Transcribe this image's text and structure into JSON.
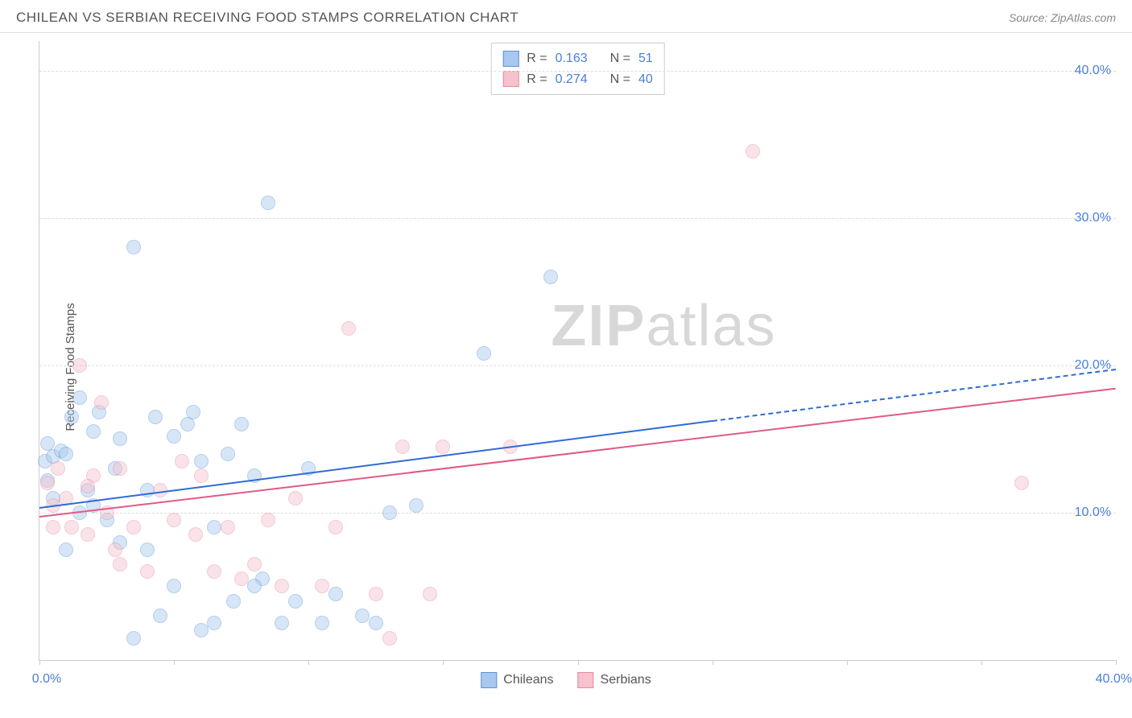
{
  "header": {
    "title": "CHILEAN VS SERBIAN RECEIVING FOOD STAMPS CORRELATION CHART",
    "source_prefix": "Source: ",
    "source": "ZipAtlas.com"
  },
  "chart": {
    "type": "scatter",
    "ylabel": "Receiving Food Stamps",
    "watermark_a": "ZIP",
    "watermark_b": "atlas",
    "background_color": "#ffffff",
    "grid_color": "#dddddd",
    "axis_color": "#cccccc",
    "axis_value_color": "#4a7fd8",
    "xlim": [
      0,
      40
    ],
    "ylim": [
      0,
      42
    ],
    "y_ticks": [
      10,
      20,
      30,
      40
    ],
    "y_tick_labels": [
      "10.0%",
      "20.0%",
      "30.0%",
      "40.0%"
    ],
    "x_ticks": [
      0,
      5,
      10,
      15,
      20,
      25,
      30,
      35,
      40
    ],
    "x_tick_labels": {
      "0": "0.0%",
      "40": "40.0%"
    },
    "marker_radius": 9,
    "marker_opacity": 0.45,
    "series": [
      {
        "name": "Chileans",
        "color_fill": "#a8c8ef",
        "color_stroke": "#5a93d8",
        "r_label": "R =",
        "r_value": "0.163",
        "n_label": "N =",
        "n_value": "51",
        "trend": {
          "x1": 0,
          "y1": 10.4,
          "x2": 25,
          "y2": 16.3,
          "color": "#2e6bd6",
          "dash_to_x": 40,
          "dash_to_y": 19.8
        },
        "points": [
          [
            0.2,
            13.5
          ],
          [
            0.3,
            12.2
          ],
          [
            0.5,
            13.8
          ],
          [
            0.5,
            11.0
          ],
          [
            0.8,
            14.2
          ],
          [
            1.0,
            14.0
          ],
          [
            1.2,
            16.5
          ],
          [
            1.5,
            10.0
          ],
          [
            1.5,
            17.8
          ],
          [
            1.8,
            11.5
          ],
          [
            2.0,
            15.5
          ],
          [
            2.2,
            16.8
          ],
          [
            2.5,
            9.5
          ],
          [
            2.8,
            13.0
          ],
          [
            3.0,
            8.0
          ],
          [
            3.0,
            15.0
          ],
          [
            3.5,
            28.0
          ],
          [
            3.5,
            1.5
          ],
          [
            4.0,
            7.5
          ],
          [
            4.3,
            16.5
          ],
          [
            4.5,
            3.0
          ],
          [
            5.0,
            15.2
          ],
          [
            5.0,
            5.0
          ],
          [
            5.5,
            16.0
          ],
          [
            5.7,
            16.8
          ],
          [
            6.0,
            13.5
          ],
          [
            6.0,
            2.0
          ],
          [
            6.5,
            9.0
          ],
          [
            7.0,
            14.0
          ],
          [
            7.2,
            4.0
          ],
          [
            7.5,
            16.0
          ],
          [
            8.0,
            12.5
          ],
          [
            8.3,
            5.5
          ],
          [
            8.5,
            31.0
          ],
          [
            9.0,
            2.5
          ],
          [
            9.5,
            4.0
          ],
          [
            10.0,
            13.0
          ],
          [
            10.5,
            2.5
          ],
          [
            11.0,
            4.5
          ],
          [
            12.0,
            3.0
          ],
          [
            12.5,
            2.5
          ],
          [
            13.0,
            10.0
          ],
          [
            14.0,
            10.5
          ],
          [
            16.5,
            20.8
          ],
          [
            19.0,
            26.0
          ],
          [
            2.0,
            10.5
          ],
          [
            1.0,
            7.5
          ],
          [
            4.0,
            11.5
          ],
          [
            6.5,
            2.5
          ],
          [
            8.0,
            5.0
          ],
          [
            0.3,
            14.7
          ]
        ]
      },
      {
        "name": "Serbians",
        "color_fill": "#f5c2cd",
        "color_stroke": "#e68ba0",
        "r_label": "R =",
        "r_value": "0.274",
        "n_label": "N =",
        "n_value": "40",
        "trend": {
          "x1": 0,
          "y1": 9.8,
          "x2": 40,
          "y2": 18.5,
          "color": "#e05a84"
        },
        "points": [
          [
            0.3,
            12.0
          ],
          [
            0.5,
            10.5
          ],
          [
            0.7,
            13.0
          ],
          [
            1.0,
            11.0
          ],
          [
            1.2,
            9.0
          ],
          [
            1.5,
            20.0
          ],
          [
            1.8,
            8.5
          ],
          [
            2.0,
            12.5
          ],
          [
            2.3,
            17.5
          ],
          [
            2.5,
            10.0
          ],
          [
            3.0,
            6.5
          ],
          [
            3.0,
            13.0
          ],
          [
            3.5,
            9.0
          ],
          [
            4.0,
            6.0
          ],
          [
            4.5,
            11.5
          ],
          [
            5.0,
            9.5
          ],
          [
            5.3,
            13.5
          ],
          [
            5.8,
            8.5
          ],
          [
            6.0,
            12.5
          ],
          [
            6.5,
            6.0
          ],
          [
            7.0,
            9.0
          ],
          [
            7.5,
            5.5
          ],
          [
            8.0,
            6.5
          ],
          [
            8.5,
            9.5
          ],
          [
            9.0,
            5.0
          ],
          [
            9.5,
            11.0
          ],
          [
            10.5,
            5.0
          ],
          [
            11.0,
            9.0
          ],
          [
            11.5,
            22.5
          ],
          [
            12.5,
            4.5
          ],
          [
            13.0,
            1.5
          ],
          [
            13.5,
            14.5
          ],
          [
            14.5,
            4.5
          ],
          [
            15.0,
            14.5
          ],
          [
            17.5,
            14.5
          ],
          [
            26.5,
            34.5
          ],
          [
            36.5,
            12.0
          ],
          [
            0.5,
            9.0
          ],
          [
            1.8,
            11.8
          ],
          [
            2.8,
            7.5
          ]
        ]
      }
    ],
    "bottom_legend": [
      {
        "label": "Chileans",
        "fill": "#a8c8ef",
        "stroke": "#5a93d8"
      },
      {
        "label": "Serbians",
        "fill": "#f5c2cd",
        "stroke": "#e68ba0"
      }
    ]
  }
}
